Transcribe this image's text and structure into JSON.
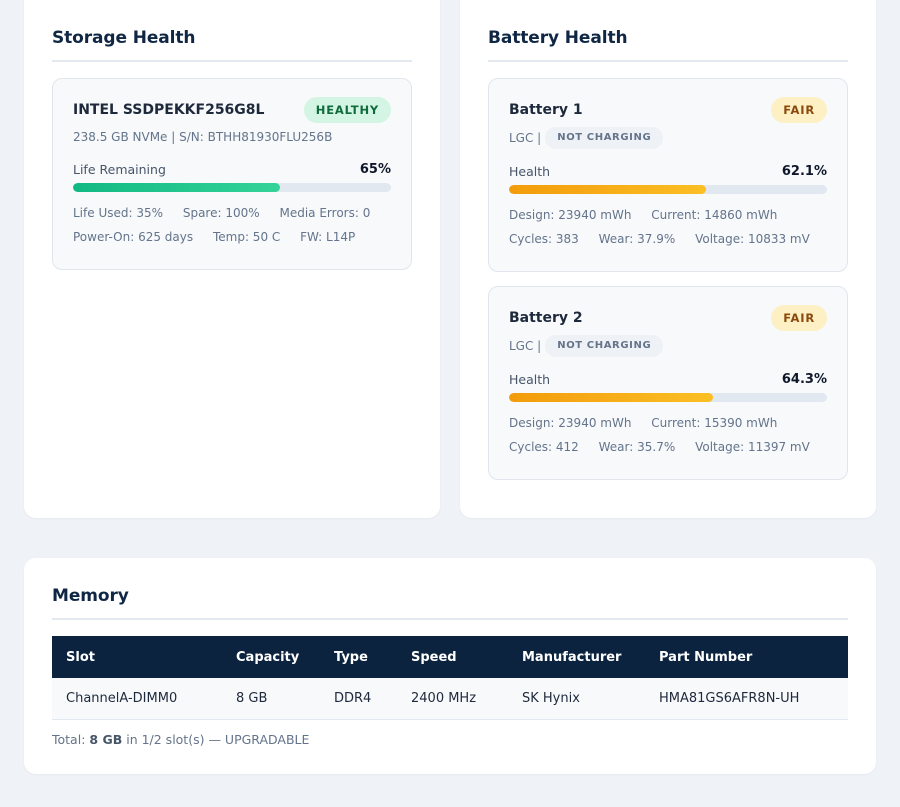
{
  "storage": {
    "title": "Storage Health",
    "devices": [
      {
        "name": "INTEL SSDPEKKF256G8L",
        "status": "HEALTHY",
        "status_color": "#0f6a3c",
        "subtitle": "238.5 GB NVMe | S/N: BTHH81930FLU256B",
        "metric_label": "Life Remaining",
        "metric_value": "65%",
        "metric_fraction": 0.65,
        "bar_color": "#12b882",
        "life_used": "Life Used: 35%",
        "spare": "Spare: 100%",
        "media_errors": "Media Errors: 0",
        "power_on": "Power-On: 625 days",
        "temp": "Temp: 50 C",
        "fw": "FW: L14P"
      }
    ]
  },
  "battery": {
    "title": "Battery Health",
    "batteries": [
      {
        "name": "Battery 1",
        "status": "FAIR",
        "status_color": "#8a4a0e",
        "vendor": "LGC |",
        "charge_state": "NOT CHARGING",
        "metric_label": "Health",
        "metric_value": "62.1%",
        "metric_fraction": 0.621,
        "bar_color": "#f39c0b",
        "design": "Design: 23940 mWh",
        "current": "Current: 14860 mWh",
        "cycles": "Cycles: 383",
        "wear": "Wear: 37.9%",
        "voltage": "Voltage: 10833 mV"
      },
      {
        "name": "Battery 2",
        "status": "FAIR",
        "status_color": "#8a4a0e",
        "vendor": "LGC |",
        "charge_state": "NOT CHARGING",
        "metric_label": "Health",
        "metric_value": "64.3%",
        "metric_fraction": 0.643,
        "bar_color": "#f39c0b",
        "design": "Design: 23940 mWh",
        "current": "Current: 15390 mWh",
        "cycles": "Cycles: 412",
        "wear": "Wear: 35.7%",
        "voltage": "Voltage: 11397 mV"
      }
    ]
  },
  "memory": {
    "title": "Memory",
    "columns": [
      "Slot",
      "Capacity",
      "Type",
      "Speed",
      "Manufacturer",
      "Part Number"
    ],
    "rows": [
      [
        "ChannelA-DIMM0",
        "8 GB",
        "DDR4",
        "2400 MHz",
        "SK Hynix",
        "HMA81GS6AFR8N-UH"
      ]
    ],
    "total_prefix": "Total:",
    "total_value": "8 GB",
    "total_suffix": "in 1/2 slot(s) — UPGRADABLE"
  },
  "colors": {
    "header_bg": "#0c2340",
    "healthy_badge_bg": "#d4f5e3",
    "fair_badge_bg": "#fdf0c4"
  }
}
